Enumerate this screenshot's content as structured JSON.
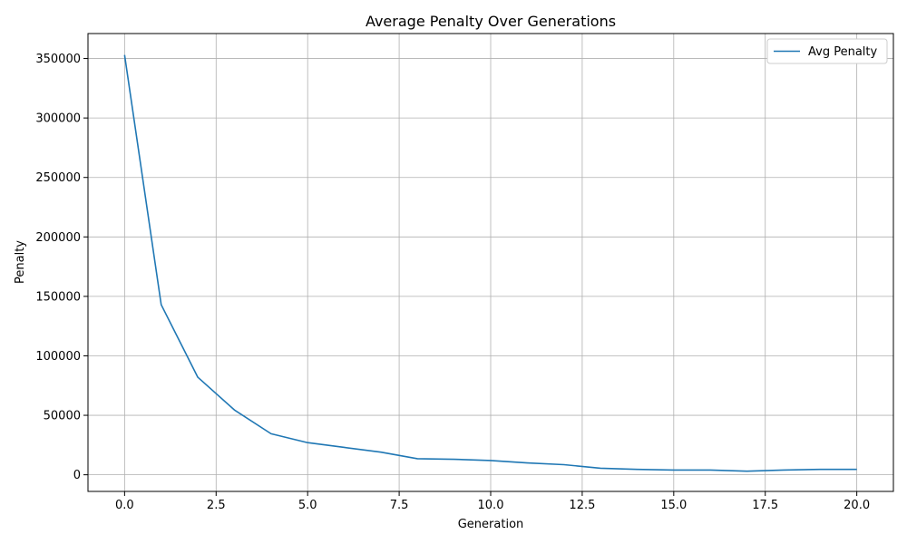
{
  "chart_data": {
    "type": "line",
    "title": "Average Penalty Over Generations",
    "xlabel": "Generation",
    "ylabel": "Penalty",
    "xlim": [
      -1,
      21
    ],
    "ylim": [
      -14000,
      371000
    ],
    "xticks": [
      0.0,
      2.5,
      5.0,
      7.5,
      10.0,
      12.5,
      15.0,
      17.5,
      20.0
    ],
    "xtick_labels": [
      "0.0",
      "2.5",
      "5.0",
      "7.5",
      "10.0",
      "12.5",
      "15.0",
      "17.5",
      "20.0"
    ],
    "yticks": [
      0,
      50000,
      100000,
      150000,
      200000,
      250000,
      300000,
      350000
    ],
    "ytick_labels": [
      "0",
      "50000",
      "100000",
      "150000",
      "200000",
      "250000",
      "300000",
      "350000"
    ],
    "grid": true,
    "legend_position": "top-right",
    "series": [
      {
        "name": "Avg Penalty",
        "color": "#1f77b4",
        "x": [
          0,
          1,
          2,
          3,
          4,
          5,
          6,
          7,
          8,
          9,
          10,
          11,
          12,
          13,
          14,
          15,
          16,
          17,
          18,
          19,
          20
        ],
        "values": [
          353000,
          143000,
          82000,
          54500,
          34500,
          27000,
          23000,
          19000,
          13500,
          13000,
          12000,
          10000,
          8500,
          5500,
          4500,
          4000,
          4000,
          3000,
          4000,
          4500,
          4500
        ]
      }
    ]
  }
}
